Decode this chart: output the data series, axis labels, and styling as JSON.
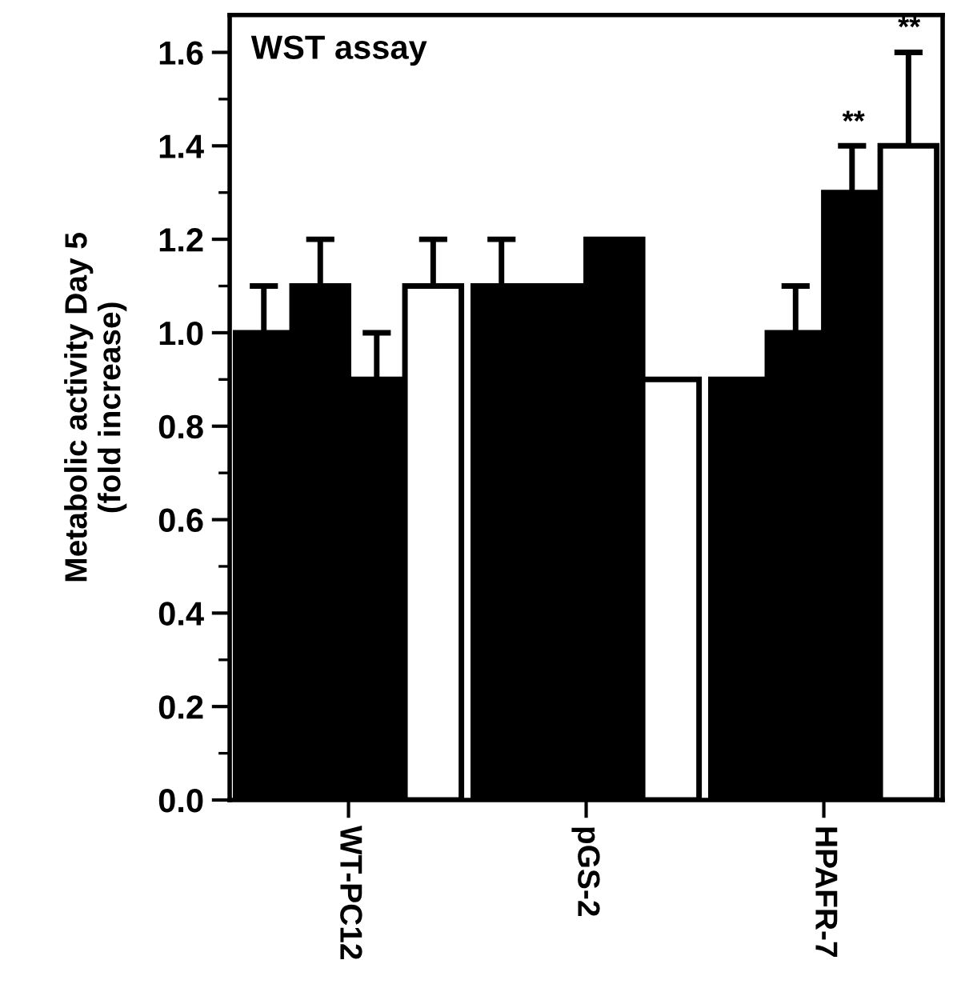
{
  "chart_data": {
    "type": "bar",
    "title": "WST assay",
    "ylabel": "Metabolic activity Day 5\n(fold increase)",
    "categories": [
      "WT-PC12",
      "pGS-2",
      "HPAFR-7"
    ],
    "series": [
      {
        "color": "#000000",
        "values": [
          1.0,
          1.1,
          0.9
        ],
        "errors": [
          [
            1.0,
            1.1
          ],
          [
            1.1,
            1.2
          ],
          null
        ]
      },
      {
        "color": "#000000",
        "values": [
          1.1,
          1.1,
          1.0
        ],
        "errors": [
          [
            1.1,
            1.2
          ],
          null,
          [
            1.0,
            1.1
          ]
        ]
      },
      {
        "color": "#000000",
        "values": [
          0.9,
          1.2,
          1.3
        ],
        "errors": [
          [
            0.9,
            1.0
          ],
          null,
          [
            1.3,
            1.4
          ]
        ]
      },
      {
        "color": "#ffffff",
        "values": [
          1.1,
          0.9,
          1.4
        ],
        "errors": [
          [
            1.1,
            1.2
          ],
          null,
          [
            1.4,
            1.6
          ]
        ]
      }
    ],
    "ylim": [
      0,
      1.68
    ],
    "yticks": [
      {
        "value": 0,
        "label": "0.0"
      },
      0.2,
      0.4,
      0.6,
      0.8,
      {
        "value": 1,
        "label": "1.0"
      },
      1.2,
      1.4,
      1.6
    ],
    "grid": false,
    "legend": false,
    "annotations": [
      "**",
      "**"
    ]
  }
}
